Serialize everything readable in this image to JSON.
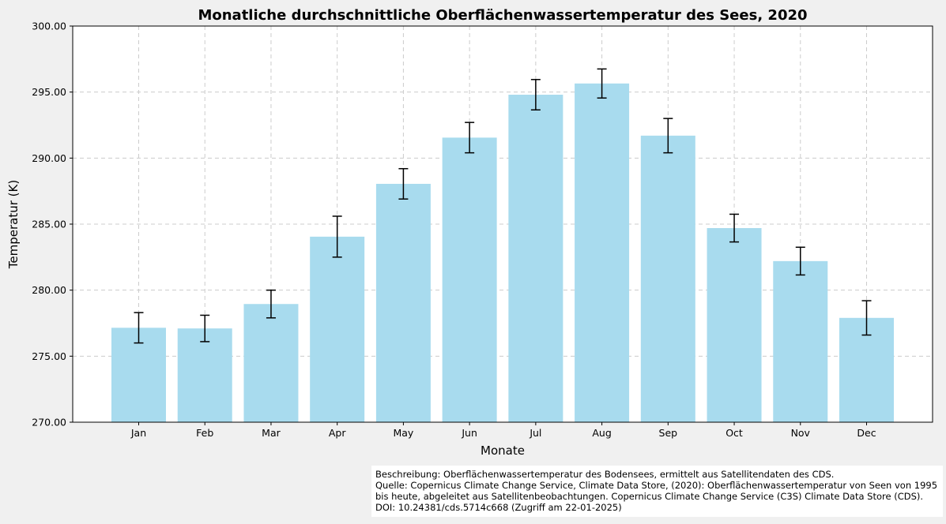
{
  "chart_data": {
    "type": "bar",
    "title": "Monatliche durchschnittliche Oberflächenwassertemperatur des Sees, 2020",
    "xlabel": "Monate",
    "ylabel": "Temperatur (K)",
    "categories": [
      "Jan",
      "Feb",
      "Mar",
      "Apr",
      "May",
      "Jun",
      "Jul",
      "Aug",
      "Sep",
      "Oct",
      "Nov",
      "Dec"
    ],
    "values": [
      277.15,
      277.1,
      278.95,
      284.05,
      288.05,
      291.55,
      294.8,
      295.65,
      291.7,
      284.7,
      282.2,
      277.9
    ],
    "error": [
      1.15,
      1.0,
      1.05,
      1.55,
      1.15,
      1.15,
      1.15,
      1.1,
      1.3,
      1.05,
      1.05,
      1.3
    ],
    "ylim": [
      270,
      300
    ],
    "yticks": [
      "270.00",
      "275.00",
      "280.00",
      "285.00",
      "290.00",
      "295.00",
      "300.00"
    ],
    "grid": true,
    "bar_color": "#a8dbee",
    "error_color": "#000000"
  },
  "caption": {
    "line1": "Beschreibung: Oberflächenwassertemperatur des Bodensees, ermittelt aus Satellitendaten des CDS.",
    "line2": "Quelle: Copernicus Climate Change Service, Climate Data Store, (2020): Oberflächenwassertemperatur von Seen von 1995 bis heute, abgeleitet aus Satellitenbeobachtungen. Copernicus Climate Change Service (C3S) Climate Data Store (CDS). DOI: 10.24381/cds.5714c668 (Zugriff am 22-01-2025)"
  }
}
